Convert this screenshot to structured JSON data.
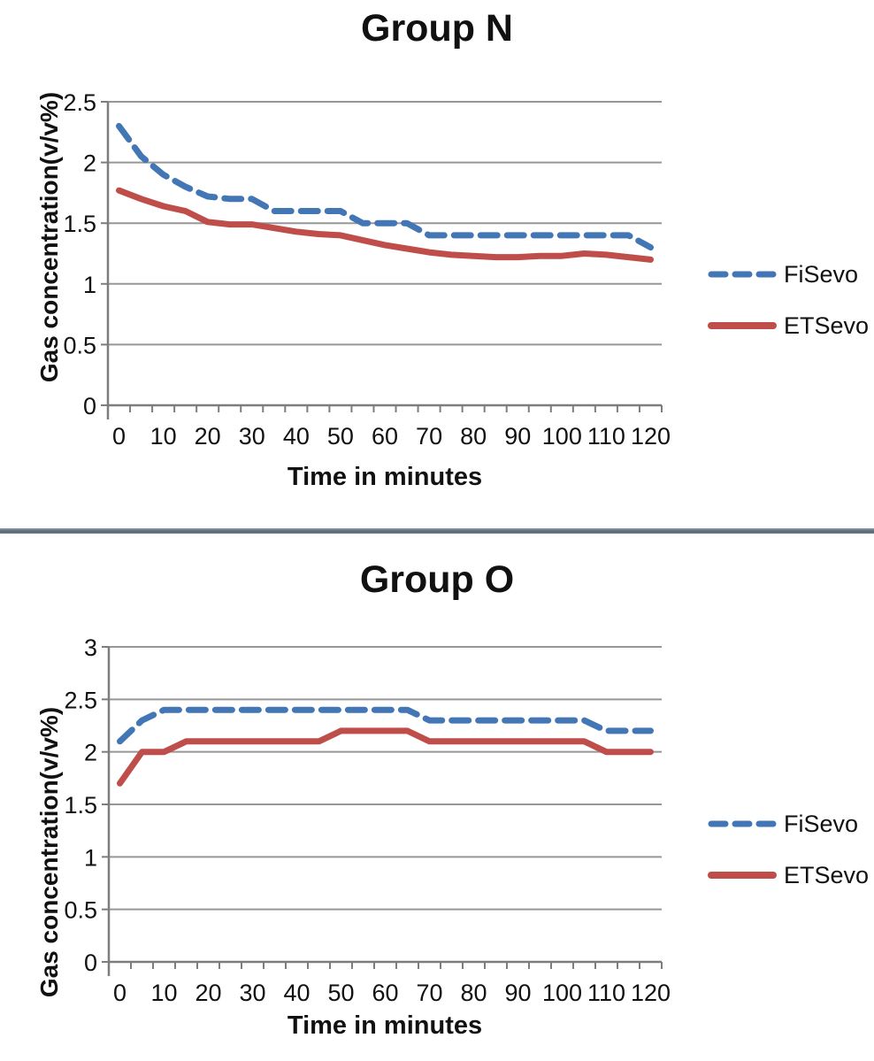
{
  "colors": {
    "fisevo_blue": "#4276b4",
    "etsevo_red": "#bf4d49",
    "grid": "#979797",
    "axis": "#7d7d7d",
    "text": "#111111",
    "separator": "#5a6875"
  },
  "chart_data": [
    {
      "type": "line",
      "title": "Group N",
      "xlabel": "Time in minutes",
      "ylabel": "Gas concentration(v/v%)",
      "x": [
        0,
        5,
        10,
        15,
        20,
        25,
        30,
        35,
        40,
        45,
        50,
        55,
        60,
        65,
        70,
        75,
        80,
        85,
        90,
        95,
        100,
        105,
        110,
        115,
        120
      ],
      "xticks": [
        0,
        10,
        20,
        30,
        40,
        50,
        60,
        70,
        80,
        90,
        100,
        110,
        120
      ],
      "yticks": [
        0,
        0.5,
        1,
        1.5,
        2,
        2.5
      ],
      "xlim": [
        0,
        120
      ],
      "ylim": [
        0,
        2.5
      ],
      "grid": "horizontal",
      "legend_position": "right",
      "series": [
        {
          "name": "FiSevo",
          "style": "dashed",
          "color": "#4276b4",
          "values": [
            2.3,
            2.05,
            1.9,
            1.8,
            1.72,
            1.7,
            1.7,
            1.6,
            1.6,
            1.6,
            1.6,
            1.5,
            1.5,
            1.5,
            1.4,
            1.4,
            1.4,
            1.4,
            1.4,
            1.4,
            1.4,
            1.4,
            1.4,
            1.4,
            1.3
          ]
        },
        {
          "name": "ETSevo",
          "style": "solid",
          "color": "#bf4d49",
          "values": [
            1.77,
            1.7,
            1.64,
            1.6,
            1.51,
            1.49,
            1.49,
            1.46,
            1.43,
            1.41,
            1.4,
            1.36,
            1.32,
            1.29,
            1.26,
            1.24,
            1.23,
            1.22,
            1.22,
            1.23,
            1.23,
            1.25,
            1.24,
            1.22,
            1.2
          ]
        }
      ]
    },
    {
      "type": "line",
      "title": "Group O",
      "xlabel": "Time in minutes",
      "ylabel": "Gas concentration(v/v%)",
      "x": [
        0,
        5,
        10,
        15,
        20,
        25,
        30,
        35,
        40,
        45,
        50,
        55,
        60,
        65,
        70,
        75,
        80,
        85,
        90,
        95,
        100,
        105,
        110,
        115,
        120
      ],
      "xticks": [
        0,
        10,
        20,
        30,
        40,
        50,
        60,
        70,
        80,
        90,
        100,
        110,
        120
      ],
      "yticks": [
        0,
        0.5,
        1,
        1.5,
        2,
        2.5,
        3
      ],
      "xlim": [
        0,
        120
      ],
      "ylim": [
        0,
        3
      ],
      "grid": "horizontal",
      "legend_position": "right",
      "series": [
        {
          "name": "FiSevo",
          "style": "dashed",
          "color": "#4276b4",
          "values": [
            2.1,
            2.3,
            2.4,
            2.4,
            2.4,
            2.4,
            2.4,
            2.4,
            2.4,
            2.4,
            2.4,
            2.4,
            2.4,
            2.4,
            2.3,
            2.3,
            2.3,
            2.3,
            2.3,
            2.3,
            2.3,
            2.3,
            2.2,
            2.2,
            2.2
          ]
        },
        {
          "name": "ETSevo",
          "style": "solid",
          "color": "#bf4d49",
          "values": [
            1.7,
            2.0,
            2.0,
            2.1,
            2.1,
            2.1,
            2.1,
            2.1,
            2.1,
            2.1,
            2.2,
            2.2,
            2.2,
            2.2,
            2.1,
            2.1,
            2.1,
            2.1,
            2.1,
            2.1,
            2.1,
            2.1,
            2.0,
            2.0,
            2.0
          ]
        }
      ]
    }
  ]
}
